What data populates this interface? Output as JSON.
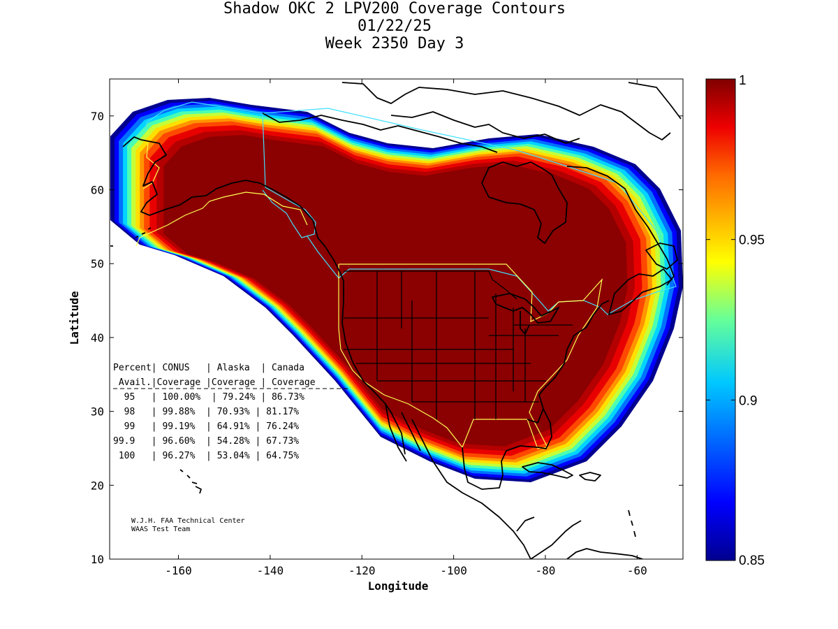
{
  "title": {
    "line1": "Shadow OKC 2 LPV200 Coverage Contours",
    "line2": "01/22/25",
    "line3": "Week 2350 Day 3"
  },
  "axes": {
    "x_label": "Longitude",
    "y_label": "Latitude",
    "x_range": [
      -175,
      -50
    ],
    "y_range": [
      10,
      75
    ],
    "x_ticks": [
      -160,
      -140,
      -120,
      -100,
      -80,
      -60
    ],
    "y_ticks": [
      10,
      20,
      30,
      40,
      50,
      60,
      70
    ]
  },
  "colorbar": {
    "min": 0.85,
    "max": 1,
    "tick_labels": [
      "1",
      "0.95",
      "0.9",
      "0.85"
    ],
    "tick_values": [
      1,
      0.95,
      0.9,
      0.85
    ]
  },
  "coverage_table": {
    "header1": "Percent| CONUS   | Alaska  | Canada",
    "header2": " Avail.|Coverage |Coverage | Coverage",
    "rows": [
      "  95   | 100.00%  | 79.24% | 86.73%",
      "  98   | 99.88%  | 70.93% | 81.17%",
      "  99   | 99.19%  | 64.91% | 76.24%",
      "99.9   | 96.60%  | 54.28% | 67.73%",
      " 100   | 96.27%  | 53.04% | 64.75%"
    ]
  },
  "credits": {
    "line1": "W.J.H. FAA Technical Center",
    "line2": "WAAS Test Team"
  },
  "colors": {
    "band_colors": [
      "#00008f",
      "#0000ff",
      "#0070ff",
      "#00d4ff",
      "#4cffb2",
      "#c6ff38",
      "#ffe000",
      "#ff9400",
      "#ff4800",
      "#e80000",
      "#b40000",
      "#8b0000"
    ],
    "coastline": "#000000",
    "service_area_yellow": "#ffff55",
    "service_area_cyan": "#40e0ff"
  }
}
